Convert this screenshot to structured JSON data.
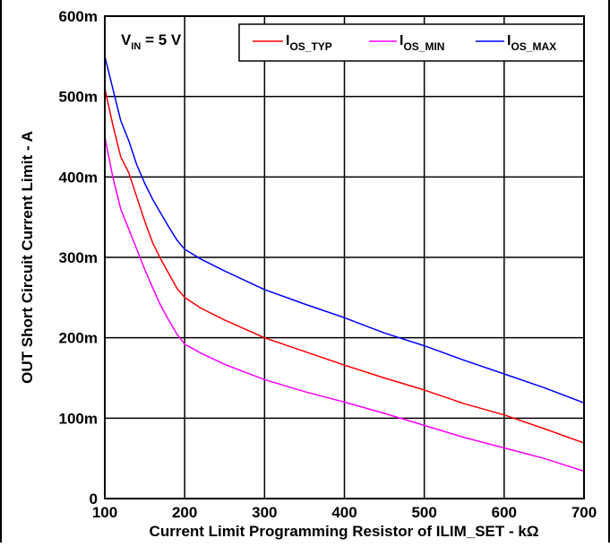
{
  "chart_data": {
    "type": "line",
    "xlabel": "Current Limit Programming Resistor of ILIM_SET - kΩ",
    "ylabel": "OUT Short Circuit Current Limit - A",
    "xlim": [
      100,
      700
    ],
    "ylim": [
      0,
      0.6
    ],
    "x_ticks": [
      100,
      200,
      300,
      400,
      500,
      600,
      700
    ],
    "x_tick_labels": [
      "100",
      "200",
      "300",
      "400",
      "500",
      "600",
      "700"
    ],
    "y_ticks": [
      0,
      0.1,
      0.2,
      0.3,
      0.4,
      0.5,
      0.6
    ],
    "y_tick_labels": [
      "0",
      "100m",
      "200m",
      "300m",
      "400m",
      "500m",
      "600m"
    ],
    "grid": true,
    "legend_position": "top-right",
    "annotation": {
      "prefix": "V",
      "subscript": "IN",
      "suffix": " = 5 V"
    },
    "series": [
      {
        "name": "IOS_TYP",
        "name_main": "I",
        "name_sub": "OS_TYP",
        "color": "#ff0000",
        "points": [
          [
            100,
            0.51
          ],
          [
            110,
            0.465
          ],
          [
            120,
            0.425
          ],
          [
            130,
            0.405
          ],
          [
            140,
            0.375
          ],
          [
            150,
            0.345
          ],
          [
            160,
            0.318
          ],
          [
            170,
            0.298
          ],
          [
            180,
            0.28
          ],
          [
            190,
            0.262
          ],
          [
            200,
            0.25
          ],
          [
            220,
            0.237
          ],
          [
            250,
            0.222
          ],
          [
            300,
            0.2
          ],
          [
            350,
            0.183
          ],
          [
            400,
            0.166
          ],
          [
            450,
            0.15
          ],
          [
            500,
            0.135
          ],
          [
            550,
            0.118
          ],
          [
            600,
            0.104
          ],
          [
            650,
            0.087
          ],
          [
            700,
            0.069
          ]
        ]
      },
      {
        "name": "IOS_MIN",
        "name_main": "I",
        "name_sub": "OS_MIN",
        "color": "#ff00ff",
        "points": [
          [
            100,
            0.45
          ],
          [
            110,
            0.4
          ],
          [
            120,
            0.36
          ],
          [
            130,
            0.335
          ],
          [
            140,
            0.31
          ],
          [
            150,
            0.285
          ],
          [
            160,
            0.262
          ],
          [
            170,
            0.24
          ],
          [
            180,
            0.222
          ],
          [
            190,
            0.205
          ],
          [
            200,
            0.192
          ],
          [
            220,
            0.181
          ],
          [
            250,
            0.167
          ],
          [
            300,
            0.148
          ],
          [
            350,
            0.133
          ],
          [
            400,
            0.12
          ],
          [
            450,
            0.106
          ],
          [
            500,
            0.091
          ],
          [
            550,
            0.076
          ],
          [
            600,
            0.063
          ],
          [
            650,
            0.05
          ],
          [
            700,
            0.034
          ]
        ]
      },
      {
        "name": "IOS_MAX",
        "name_main": "I",
        "name_sub": "OS_MAX",
        "color": "#0000ff",
        "points": [
          [
            100,
            0.55
          ],
          [
            110,
            0.51
          ],
          [
            120,
            0.47
          ],
          [
            130,
            0.445
          ],
          [
            140,
            0.415
          ],
          [
            150,
            0.392
          ],
          [
            160,
            0.372
          ],
          [
            170,
            0.355
          ],
          [
            180,
            0.338
          ],
          [
            190,
            0.322
          ],
          [
            200,
            0.31
          ],
          [
            220,
            0.298
          ],
          [
            250,
            0.283
          ],
          [
            300,
            0.26
          ],
          [
            350,
            0.242
          ],
          [
            400,
            0.225
          ],
          [
            450,
            0.206
          ],
          [
            500,
            0.19
          ],
          [
            550,
            0.172
          ],
          [
            600,
            0.155
          ],
          [
            650,
            0.138
          ],
          [
            700,
            0.119
          ]
        ]
      }
    ]
  }
}
